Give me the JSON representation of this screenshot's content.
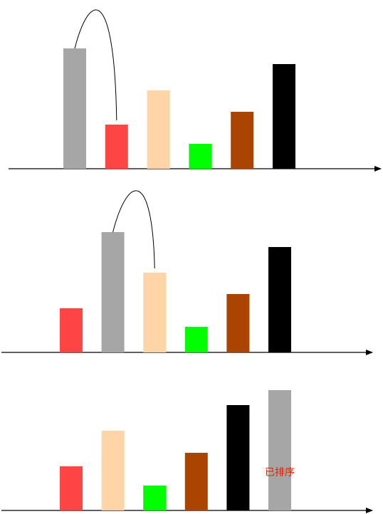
{
  "panels": [
    {
      "bars": [
        {
          "color": "#a6a6a6",
          "height": 169
        },
        {
          "color": "#ff4444",
          "height": 62
        },
        {
          "color": "#ffd5a8",
          "height": 110
        },
        {
          "color": "#00ff00",
          "height": 35
        },
        {
          "color": "#aa4400",
          "height": 80
        },
        {
          "color": "#000000",
          "height": 147
        }
      ],
      "swap": [
        0,
        1
      ]
    },
    {
      "bars": [
        {
          "color": "#ff4444",
          "height": 62
        },
        {
          "color": "#a6a6a6",
          "height": 169
        },
        {
          "color": "#ffd5a8",
          "height": 112
        },
        {
          "color": "#00ff00",
          "height": 36
        },
        {
          "color": "#aa4400",
          "height": 82
        },
        {
          "color": "#000000",
          "height": 148
        }
      ],
      "swap": [
        1,
        2
      ]
    },
    {
      "bars": [
        {
          "color": "#ff4444",
          "height": 62
        },
        {
          "color": "#ffd5a8",
          "height": 112
        },
        {
          "color": "#00ff00",
          "height": 35
        },
        {
          "color": "#aa4400",
          "height": 81
        },
        {
          "color": "#000000",
          "height": 148
        },
        {
          "color": "#a6a6a6",
          "height": 169
        }
      ],
      "sorted_label": "已排序",
      "sorted_label_color": "#dd2200"
    }
  ]
}
